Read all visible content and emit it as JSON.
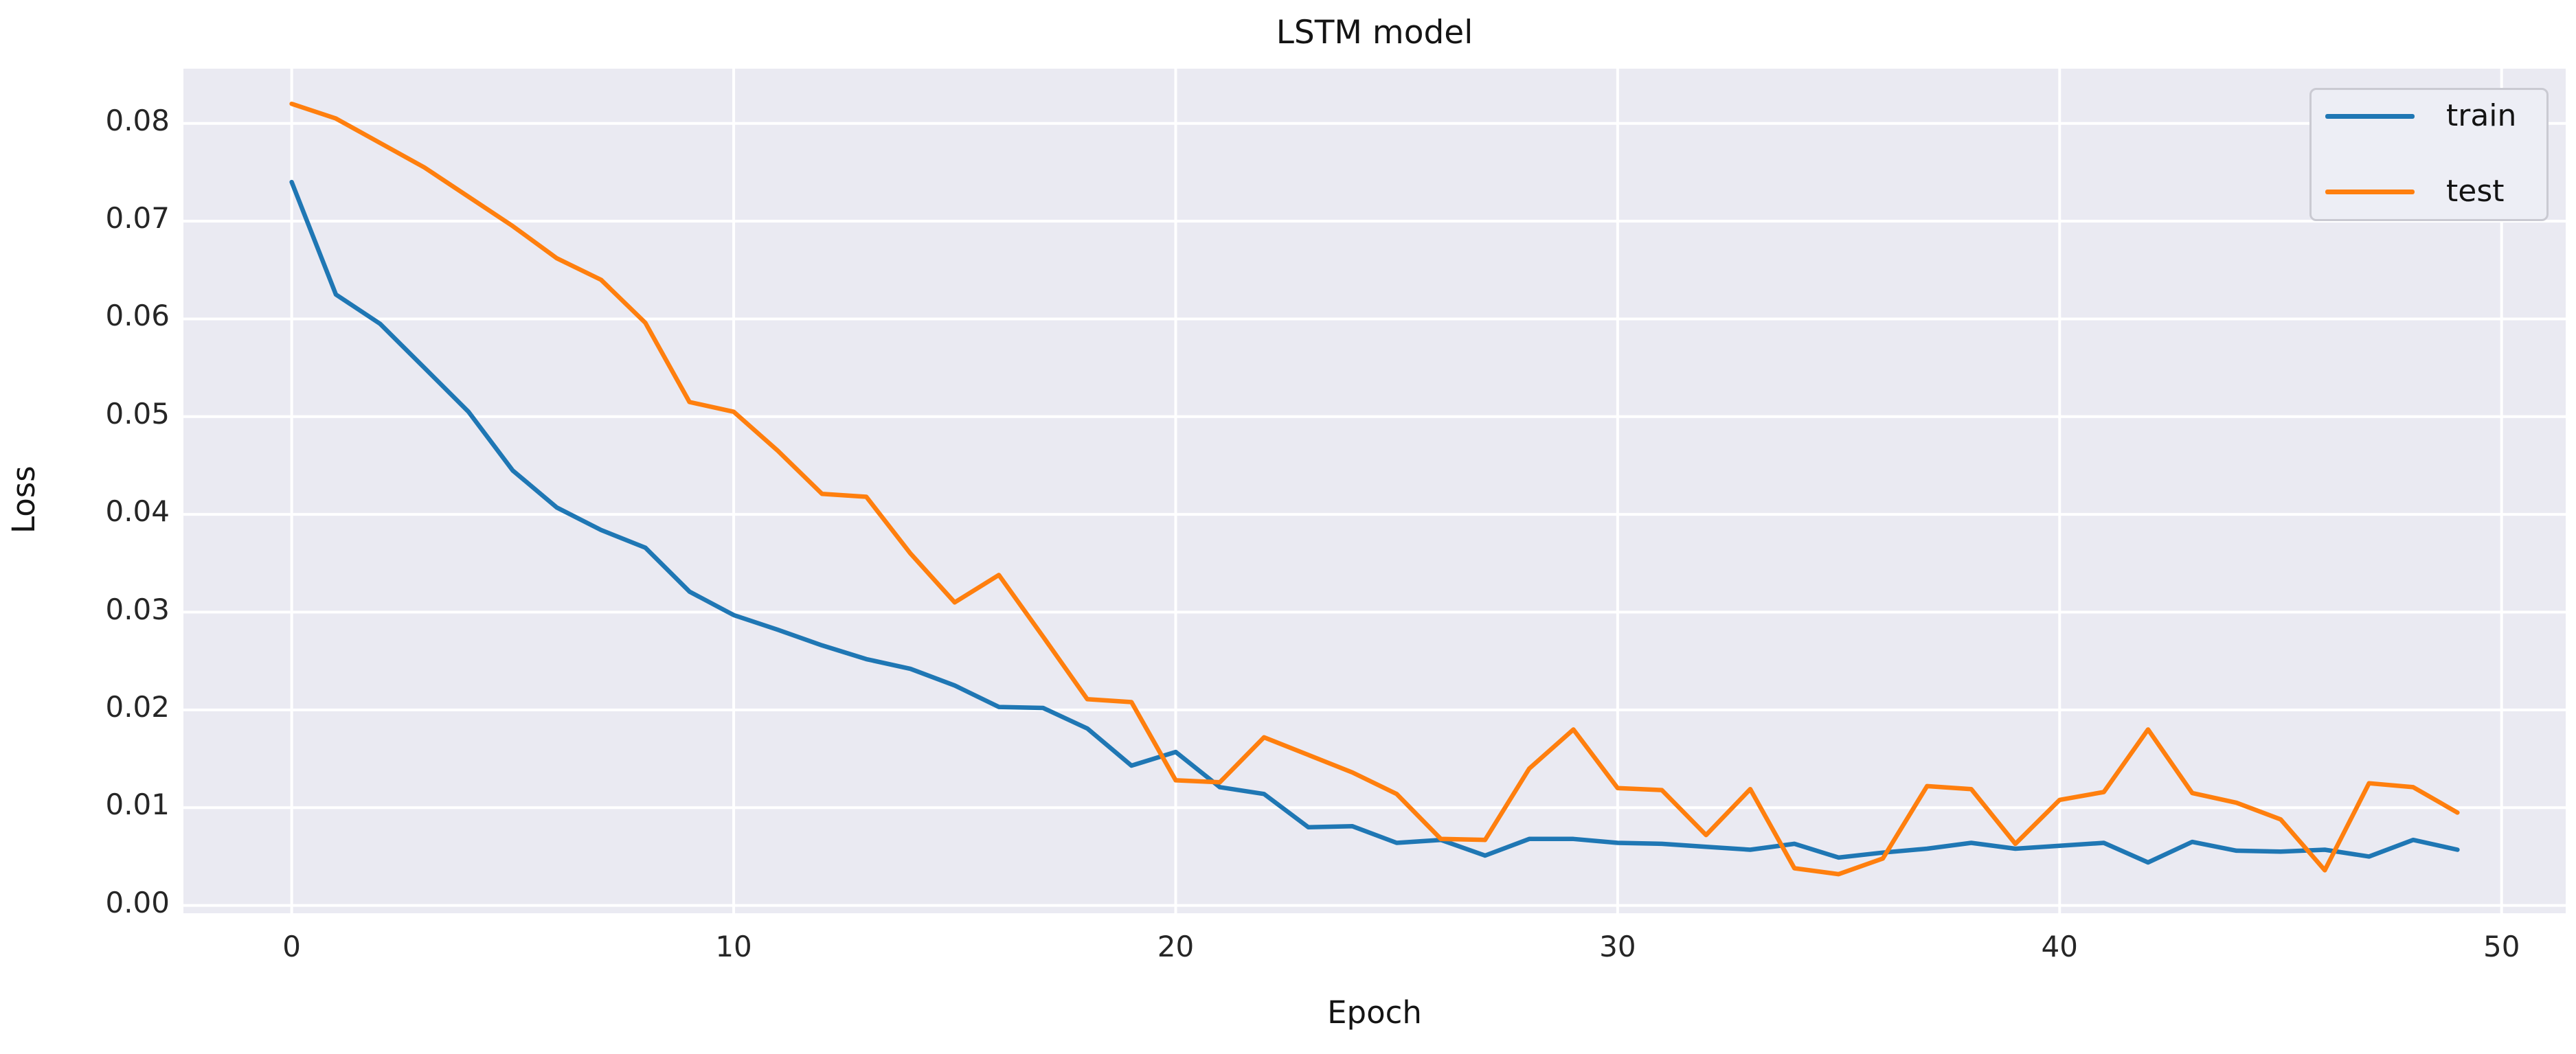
{
  "chart_data": {
    "type": "line",
    "title": "LSTM model",
    "xlabel": "Epoch",
    "ylabel": "Loss",
    "x": [
      0,
      1,
      2,
      3,
      4,
      5,
      6,
      7,
      8,
      9,
      10,
      11,
      12,
      13,
      14,
      15,
      16,
      17,
      18,
      19,
      20,
      21,
      22,
      23,
      24,
      25,
      26,
      27,
      28,
      29,
      30,
      31,
      32,
      33,
      34,
      35,
      36,
      37,
      38,
      39,
      40,
      41,
      42,
      43,
      44,
      45,
      46,
      47,
      48,
      49
    ],
    "series": [
      {
        "name": "train",
        "color": "#1f77b4",
        "values": [
          0.074,
          0.0625,
          0.0595,
          0.055,
          0.0505,
          0.0445,
          0.0407,
          0.0384,
          0.0366,
          0.0321,
          0.0297,
          0.0282,
          0.0266,
          0.0252,
          0.0242,
          0.0225,
          0.0203,
          0.0202,
          0.0181,
          0.0143,
          0.0157,
          0.0121,
          0.0114,
          0.008,
          0.0081,
          0.0064,
          0.0067,
          0.0051,
          0.0068,
          0.0068,
          0.0064,
          0.0063,
          0.006,
          0.0057,
          0.0063,
          0.0049,
          0.0054,
          0.0058,
          0.0064,
          0.0058,
          0.0061,
          0.0064,
          0.0044,
          0.0065,
          0.0056,
          0.0055,
          0.0057,
          0.005,
          0.0067,
          0.0057
        ]
      },
      {
        "name": "test",
        "color": "#ff7f0e",
        "values": [
          0.082,
          0.0805,
          0.078,
          0.0755,
          0.0725,
          0.0695,
          0.0662,
          0.064,
          0.0596,
          0.0515,
          0.0505,
          0.0465,
          0.0421,
          0.0418,
          0.036,
          0.031,
          0.0338,
          0.0275,
          0.0211,
          0.0208,
          0.0128,
          0.0126,
          0.0172,
          0.0154,
          0.0136,
          0.0114,
          0.0068,
          0.0067,
          0.014,
          0.018,
          0.012,
          0.0118,
          0.0072,
          0.0119,
          0.0038,
          0.0032,
          0.0048,
          0.0122,
          0.0119,
          0.0063,
          0.0108,
          0.0116,
          0.018,
          0.0115,
          0.0105,
          0.0088,
          0.0036,
          0.0125,
          0.0121,
          0.0095
        ]
      }
    ],
    "xticks": [
      0,
      10,
      20,
      30,
      40,
      50
    ],
    "yticks": [
      0.0,
      0.01,
      0.02,
      0.03,
      0.04,
      0.05,
      0.06,
      0.07,
      0.08
    ],
    "ytick_labels": [
      "0.00",
      "0.01",
      "0.02",
      "0.03",
      "0.04",
      "0.05",
      "0.06",
      "0.07",
      "0.08"
    ],
    "xlim": [
      -2.45,
      51.45
    ],
    "ylim": [
      -0.0008,
      0.0856
    ],
    "grid": true,
    "grid_color": "#ffffff",
    "plot_background": "#eaeaf2",
    "legend_position": "upper right",
    "legend_entries": [
      "train",
      "test"
    ]
  }
}
